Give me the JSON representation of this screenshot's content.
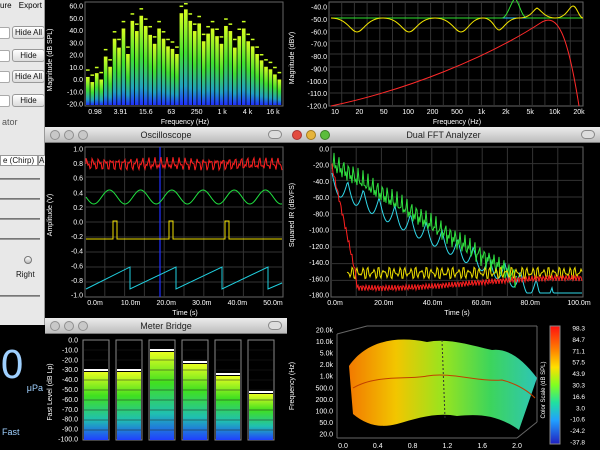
{
  "left_panel": {
    "menu": [
      "ure",
      "Export"
    ],
    "buttons": [
      "Hide All",
      "Hide",
      "Hide All",
      "Hide"
    ],
    "label_ator": "ator",
    "dropdown_value": "e (Chirp)",
    "dropdown_extra": "A",
    "label_right": "Right"
  },
  "spl_meter": {
    "value": "0",
    "unit": "μPa",
    "mode": "Fast"
  },
  "spectrum": {
    "ylabel": "Magnitude (dB SPL)",
    "xlabel": "Frequency (Hz)",
    "yticks": [
      "60.0",
      "50.0",
      "40.0",
      "30.0",
      "20.0",
      "10.0",
      "0.0",
      "-10.0",
      "-20.0"
    ],
    "xticks": [
      "0.98",
      "3.91",
      "15.6",
      "63",
      "250",
      "1 k",
      "4 k",
      "16 k"
    ],
    "bars": [
      22,
      18,
      25,
      20,
      38,
      30,
      52,
      45,
      60,
      40,
      66,
      58,
      70,
      62,
      55,
      48,
      60,
      52,
      46,
      44,
      40,
      72,
      75,
      66,
      58,
      64,
      50,
      56,
      60,
      54,
      48,
      62,
      58,
      45,
      54,
      60,
      50,
      46,
      40,
      35,
      30,
      28,
      24,
      20
    ],
    "peaks": [
      28,
      24,
      30,
      26,
      44,
      36,
      58,
      52,
      66,
      46,
      72,
      64,
      76,
      68,
      62,
      54,
      66,
      58,
      52,
      50,
      46,
      78,
      80,
      72,
      64,
      70,
      56,
      62,
      66,
      60,
      54,
      68,
      64,
      52,
      60,
      66,
      56,
      52,
      46,
      40,
      36,
      34,
      30,
      26
    ]
  },
  "filter_plot": {
    "ylabel": "Magnitude (dBV)",
    "xlabel": "Frequency (Hz)",
    "yticks": [
      "-40.0",
      "-50.0",
      "-60.0",
      "-70.0",
      "-80.0",
      "-90.0",
      "-100.0",
      "-110.0",
      "-120.0"
    ],
    "xticks": [
      "10",
      "20",
      "50",
      "100",
      "200",
      "500",
      "1k",
      "2k",
      "5k",
      "10k",
      "20k"
    ]
  },
  "oscilloscope": {
    "title": "Oscilloscope",
    "ylabel": "Amplitude (V)",
    "xlabel": "Time (s)",
    "yticks": [
      "1.0",
      "0.8",
      "0.6",
      "0.4",
      "0.2",
      "0.0",
      "-0.2",
      "-0.4",
      "-0.6",
      "-0.8",
      "-1.0"
    ],
    "xticks": [
      "0.0m",
      "10.0m",
      "20.0m",
      "30.0m",
      "40.0m",
      "50.0m"
    ]
  },
  "fft_analyzer": {
    "title": "Dual FFT Analyzer",
    "ylabel": "Squared IR (dBVFS)",
    "xlabel": "Time (s)",
    "yticks": [
      "0.0",
      "-20.0",
      "-40.0",
      "-60.0",
      "-80.0",
      "-100.0",
      "-120.0",
      "-140.0",
      "-160.0",
      "-180.0"
    ],
    "xticks": [
      "0.0m",
      "20.0m",
      "40.0m",
      "60.0m",
      "80.0m",
      "100.0m"
    ]
  },
  "meter_bridge": {
    "title": "Meter Bridge",
    "ylabel": "Fast Level (dB Lp)",
    "yticks": [
      "0.0",
      "-10.0",
      "-20.0",
      "-30.0",
      "-40.0",
      "-50.0",
      "-60.0",
      "-70.0",
      "-80.0",
      "-90.0",
      "-100.0"
    ],
    "levels": [
      0.68,
      0.68,
      0.88,
      0.76,
      0.64,
      0.46
    ]
  },
  "spectrogram_3d": {
    "ylabel": "Frequency (Hz)",
    "yticks": [
      "20.0k",
      "10.0k",
      "5.0k",
      "2.0k",
      "1.0k",
      "500.0",
      "200.0",
      "100.0",
      "50.0",
      "20.0"
    ],
    "xticks": [
      "0.0",
      "0.4",
      "0.8",
      "1.2",
      "1.6",
      "2.0"
    ],
    "colorbar_label": "Color Scale (dB SPL)",
    "colorbar_ticks": [
      "98.3",
      "84.7",
      "71.1",
      "57.5",
      "43.9",
      "30.3",
      "16.6",
      "3.0",
      "-10.6",
      "-24.2",
      "-37.8"
    ]
  }
}
